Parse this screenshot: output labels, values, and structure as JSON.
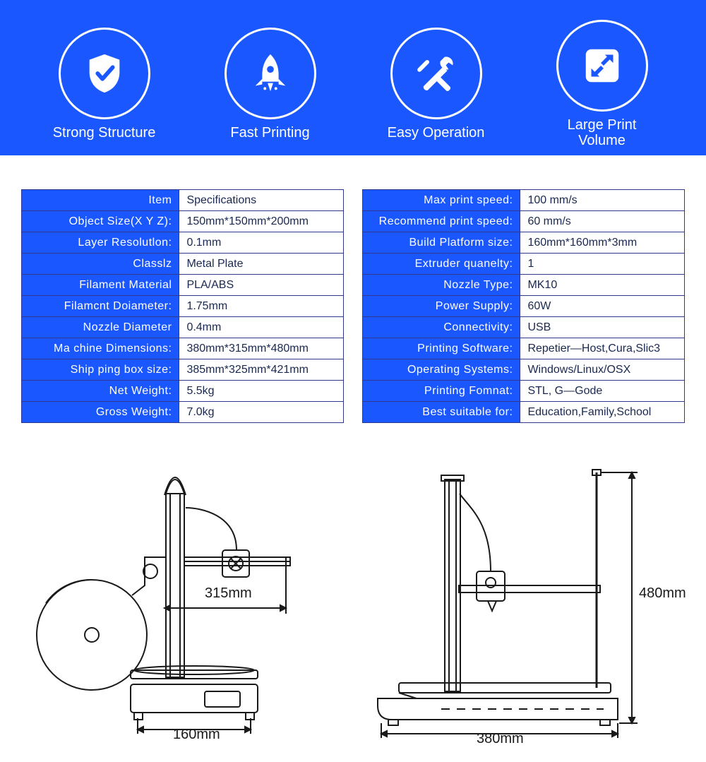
{
  "colors": {
    "hero_bg": "#1a57ff",
    "circle_border": "#ffffff",
    "key_bg": "#1a57ff",
    "key_text": "#ffffff",
    "val_text": "#1a2850",
    "table_border": "#2f3a8f"
  },
  "features": [
    {
      "icon": "shield-check",
      "label": "Strong Structure"
    },
    {
      "icon": "rocket",
      "label": "Fast Printing"
    },
    {
      "icon": "tools",
      "label": "Easy Operation"
    },
    {
      "icon": "expand",
      "label": "Large Print\nVolume"
    }
  ],
  "spec_left": [
    {
      "k": "Item",
      "v": "Specifications"
    },
    {
      "k": "Object Size(X Y Z):",
      "v": "150mm*150mm*200mm"
    },
    {
      "k": "Layer Resolutlon:",
      "v": "0.1mm"
    },
    {
      "k": "Classlz",
      "v": "Metal Plate"
    },
    {
      "k": "Filament Material",
      "v": "PLA/ABS"
    },
    {
      "k": "Filamcnt Doiameter:",
      "v": "1.75mm"
    },
    {
      "k": "Nozzle Diameter",
      "v": "0.4mm"
    },
    {
      "k": "Ma chine Dimensions:",
      "v": "380mm*315mm*480mm"
    },
    {
      "k": "Ship ping box size:",
      "v": "385mm*325mm*421mm"
    },
    {
      "k": "Net Weight:",
      "v": "5.5kg"
    },
    {
      "k": "Gross Weight:",
      "v": "7.0kg"
    }
  ],
  "spec_right": [
    {
      "k": "Max print speed:",
      "v": "100 mm/s"
    },
    {
      "k": "Recommend print speed:",
      "v": "60 mm/s"
    },
    {
      "k": "Build Platform size:",
      "v": "160mm*160mm*3mm"
    },
    {
      "k": "Extruder quanelty:",
      "v": "1"
    },
    {
      "k": "Nozzle Type:",
      "v": "MK10"
    },
    {
      "k": "Power Supply:",
      "v": "60W"
    },
    {
      "k": "Connectivity:",
      "v": "USB"
    },
    {
      "k": "Printing Software:",
      "v": "Repetier—Host,Cura,Slic3"
    },
    {
      "k": "Operating Systems:",
      "v": "Windows/Linux/OSX"
    },
    {
      "k": "Printing Fomnat:",
      "v": "STL, G—Gode"
    },
    {
      "k": "Best suitable for:",
      "v": "Education,Family,School"
    }
  ],
  "diagrams": {
    "left": {
      "top": "315mm",
      "bottom": "160mm"
    },
    "right": {
      "side": "480mm",
      "bottom": "380mm"
    }
  }
}
